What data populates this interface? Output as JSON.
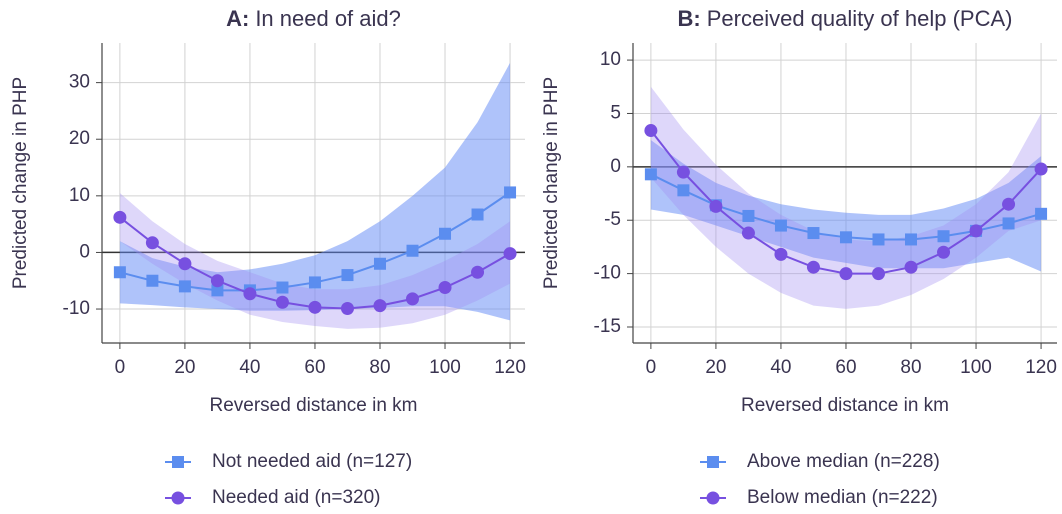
{
  "chart_data": [
    {
      "type": "line",
      "panel": "A:",
      "title": "In need of aid?",
      "xlabel": "Reversed distance  in km",
      "ylabel": "Predicted change in PHP",
      "x": [
        0,
        10,
        20,
        30,
        40,
        50,
        60,
        70,
        80,
        90,
        100,
        110,
        120
      ],
      "xlim": [
        -5.5,
        124.6
      ],
      "xticks": [
        0,
        20,
        40,
        60,
        80,
        100,
        120
      ],
      "ylim": [
        -16,
        37
      ],
      "yticks": [
        -10,
        0,
        10,
        20,
        30
      ],
      "grid": true,
      "reference_line": 0,
      "series": [
        {
          "name": "Not needed aid (n=127)",
          "color": "#5b8def",
          "band_color": "rgba(95,135,245,0.5)",
          "marker": "square",
          "values": [
            -3.5,
            -5,
            -6,
            -6.7,
            -6.7,
            -6.2,
            -5.3,
            -4,
            -2,
            0.3,
            3.3,
            6.7,
            10.6
          ],
          "lower": [
            -9,
            -9.3,
            -9.7,
            -10,
            -10.3,
            -10.3,
            -10.2,
            -10,
            -9.8,
            -9.5,
            -9.5,
            -10.5,
            -12
          ],
          "upper": [
            2,
            -1,
            -2.5,
            -3.5,
            -3,
            -2,
            -0.5,
            2,
            5.5,
            10,
            15,
            23,
            33.5
          ]
        },
        {
          "name": "Needed aid (n=320)",
          "color": "#7750e0",
          "band_color": "rgba(160,140,240,0.35)",
          "marker": "circle",
          "values": [
            6.2,
            1.7,
            -2,
            -5,
            -7.3,
            -8.8,
            -9.7,
            -9.9,
            -9.4,
            -8.2,
            -6.2,
            -3.5,
            -0.2
          ],
          "lower": [
            2,
            -2,
            -5.5,
            -8.5,
            -11,
            -12.3,
            -13,
            -13.5,
            -13.3,
            -12.5,
            -11,
            -8.5,
            -5.5
          ],
          "upper": [
            10.5,
            5.5,
            1.5,
            -1.5,
            -3.5,
            -5.5,
            -6.5,
            -6.5,
            -5.8,
            -4,
            -1.5,
            1.5,
            5.5
          ]
        }
      ]
    },
    {
      "type": "line",
      "panel": "B:",
      "title": "Perceived quality of help (PCA)",
      "xlabel": "Reversed distance in km",
      "ylabel": "Predicted change in PHP",
      "x": [
        0,
        10,
        20,
        30,
        40,
        50,
        60,
        70,
        80,
        90,
        100,
        110,
        120
      ],
      "xlim": [
        -5.5,
        124.9
      ],
      "xticks": [
        0,
        20,
        40,
        60,
        80,
        100,
        120
      ],
      "ylim": [
        -16.5,
        11.6
      ],
      "yticks": [
        -15,
        -10,
        -5,
        0,
        5,
        10
      ],
      "grid": true,
      "reference_line": 0,
      "series": [
        {
          "name": "Above median (n=228)",
          "color": "#5b8def",
          "band_color": "rgba(95,135,245,0.5)",
          "marker": "square",
          "values": [
            -0.7,
            -2.2,
            -3.6,
            -4.6,
            -5.5,
            -6.2,
            -6.6,
            -6.8,
            -6.8,
            -6.5,
            -6,
            -5.3,
            -4.4
          ],
          "lower": [
            -4,
            -4.5,
            -5.5,
            -6.5,
            -7.5,
            -8.5,
            -9,
            -9.5,
            -9.5,
            -9.5,
            -9,
            -8.5,
            -9.8
          ],
          "upper": [
            2.5,
            0.3,
            -1.5,
            -2.7,
            -3.5,
            -4,
            -4.3,
            -4.5,
            -4.5,
            -3.9,
            -3,
            -1.5,
            1
          ]
        },
        {
          "name": "Below median (n=222)",
          "color": "#7750e0",
          "band_color": "rgba(160,140,240,0.35)",
          "marker": "circle",
          "values": [
            3.4,
            -0.5,
            -3.7,
            -6.2,
            -8.2,
            -9.4,
            -10,
            -10,
            -9.4,
            -8,
            -6,
            -3.5,
            -0.2
          ],
          "lower": [
            -1,
            -4.5,
            -7.5,
            -10,
            -11.8,
            -13,
            -13.3,
            -13,
            -12,
            -10.5,
            -8.5,
            -6,
            -5
          ],
          "upper": [
            7.5,
            3.5,
            0.2,
            -2.5,
            -4.5,
            -6,
            -6.8,
            -7,
            -6.5,
            -5.5,
            -3.5,
            -0.5,
            5
          ]
        }
      ]
    }
  ]
}
